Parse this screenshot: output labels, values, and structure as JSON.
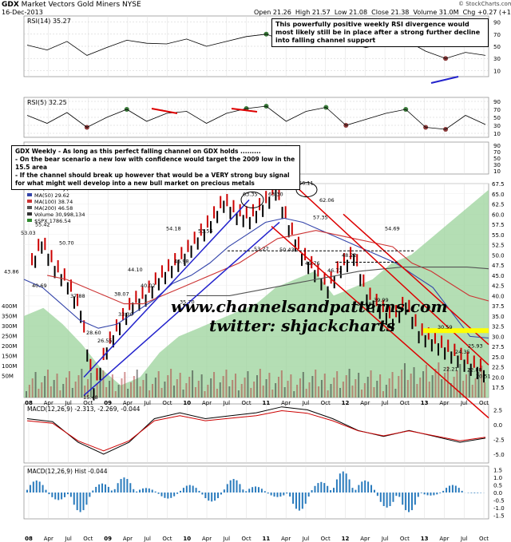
{
  "header": {
    "symbol": "GDX",
    "name": "Market Vectors Gold Miners",
    "exchange": "NYSE",
    "date": "16-Dec-2013",
    "open": "Open 21.26",
    "high": "High 21.57",
    "low": "Low 21.08",
    "close": "Close 21.38",
    "volume": "Volume 31.0M",
    "change": "Chg +0.27 (+1.28%)",
    "credit": "© StockCharts.com"
  },
  "annotations": {
    "rsi_note": "This powerfully positive weekly RSI divergence would most likely still be in place after a strong further decline into falling channel support",
    "main_note_1": "GDX Weekly - As long as this perfect falling channel on GDX holds .........",
    "main_note_2": "- On the bear scenario a new low with confidence would target the 2009 low in the 15.5 area",
    "main_note_3": "- If the channel should break up however that would be a VERY strong buy signal for what might well develop into a new bull market on precious metals",
    "website": "www.channelsandpatterns.com",
    "twitter": "twitter: shjackcharts"
  },
  "colors": {
    "price_up": "#000000",
    "price_down": "#cc0000",
    "ma50": "#3344aa",
    "ma100": "#cc3333",
    "ma200": "#555555",
    "spx_area": "#9bd39b",
    "trendline_blue": "#2222cc",
    "trendline_red": "#dd0000",
    "volume": "#3366aa",
    "hist": "#2a7bbd",
    "rsi_fill_low": "#8a3a3a",
    "rsi_fill_high": "#3a7a3a"
  },
  "chart_data": [
    {
      "type": "line",
      "panel": "rsi14",
      "label": "RSI(14) 35.27",
      "ylim": [
        0,
        100
      ],
      "ticks": [
        "90",
        "70",
        "50",
        "30",
        "10"
      ],
      "x": [
        "08",
        "Apr",
        "Jul",
        "Oct",
        "09",
        "Apr",
        "Jul",
        "Oct",
        "10",
        "Apr",
        "Jul",
        "Oct",
        "11",
        "Apr",
        "Jul",
        "Oct",
        "12",
        "Apr",
        "Jul",
        "Oct",
        "13",
        "Apr",
        "Jul",
        "Oct"
      ],
      "values": [
        52,
        44,
        58,
        35,
        48,
        60,
        55,
        54,
        62,
        50,
        58,
        66,
        70,
        58,
        62,
        70,
        55,
        48,
        55,
        60,
        42,
        30,
        40,
        35
      ]
    },
    {
      "type": "line",
      "panel": "rsi5",
      "label": "RSI(5) 32.25",
      "ylim": [
        0,
        100
      ],
      "ticks": [
        "90",
        "70",
        "50",
        "30",
        "10"
      ],
      "values": [
        55,
        35,
        62,
        25,
        50,
        70,
        40,
        60,
        65,
        35,
        60,
        72,
        78,
        40,
        65,
        75,
        30,
        45,
        60,
        70,
        25,
        20,
        55,
        32
      ]
    },
    {
      "type": "line",
      "panel": "price",
      "title": "GDX (Weekly) 21.38",
      "legend": [
        "MA(50) 29.62",
        "MA(100) 38.74",
        "MA(200) 46.58",
        "Volume 30,998,134",
        "$SPX 1786.54"
      ],
      "ylim": [
        15,
        67.5
      ],
      "yticks": [
        "67.5",
        "65.0",
        "62.5",
        "60.0",
        "57.5",
        "55.0",
        "52.5",
        "50.0",
        "47.5",
        "45.0",
        "42.5",
        "40.0",
        "37.5",
        "35.0",
        "32.5",
        "30.0",
        "27.5",
        "25.0",
        "22.5",
        "20.0",
        "17.5"
      ],
      "volume_ticks": [
        "400M",
        "350M",
        "300M",
        "250M",
        "200M",
        "150M",
        "100M",
        "50M"
      ],
      "xticks": [
        "08",
        "Apr",
        "Jul",
        "Oct",
        "09",
        "Apr",
        "Jul",
        "Oct",
        "10",
        "Apr",
        "Jul",
        "Oct",
        "11",
        "Apr",
        "Jul",
        "Oct",
        "12",
        "Apr",
        "Jul",
        "Oct",
        "13",
        "Apr",
        "Jul",
        "Oct"
      ],
      "close": [
        46,
        53,
        47,
        43,
        36,
        17,
        27,
        33,
        38,
        40,
        44,
        47,
        50,
        54,
        58,
        63,
        60,
        59,
        62,
        66,
        57,
        50,
        46,
        42,
        47,
        50,
        40,
        37,
        34,
        38,
        31,
        29,
        27,
        25,
        23,
        21.4
      ],
      "price_labels": [
        "53.03",
        "55.42",
        "50.70",
        "43.86",
        "40.69",
        "37.88",
        "26.55",
        "28.60",
        "33.30",
        "38.07",
        "44.10",
        "40.02",
        "35.70",
        "54.18",
        "53.56",
        "46.98",
        "63.35",
        "63.30",
        "53.27",
        "50.43",
        "66.11",
        "62.06",
        "57.35",
        "49.76",
        "46.72",
        "48.22",
        "38.68",
        "39.99",
        "54.69",
        "30.59",
        "24.35",
        "25.93",
        "22.21",
        "22.88",
        "20.51",
        "15.48"
      ],
      "ma50": [
        44,
        42,
        38,
        34,
        32,
        33,
        36,
        39,
        43,
        45,
        48,
        52,
        55,
        58,
        59,
        58,
        56,
        54,
        52,
        50,
        48,
        45,
        42,
        36,
        30,
        29.6
      ],
      "ma100": [
        45,
        44,
        42,
        40,
        38,
        38,
        40,
        42,
        44,
        46,
        48,
        51,
        54,
        55,
        56,
        55,
        54,
        53,
        52,
        48,
        46,
        43,
        40,
        38.7
      ],
      "ma200": [
        40,
        40,
        40,
        41,
        42,
        43,
        44,
        45,
        46,
        46.5,
        47,
        47,
        47,
        47,
        46.6
      ]
    },
    {
      "type": "line",
      "panel": "macd",
      "label": "MACD(12,26,9) -2.313, -2.269, -0.044",
      "ticks": [
        "2.5",
        "0.0",
        "-2.5",
        "-5.0"
      ],
      "values": [
        1,
        0.5,
        -3,
        -5,
        -3,
        1,
        2,
        1,
        1.5,
        2,
        3,
        2.5,
        1,
        -1,
        -2,
        -1,
        -2,
        -3,
        -2.3
      ]
    },
    {
      "type": "bar",
      "panel": "macd_hist",
      "label": "MACD(12,26,9) Hist -0.044",
      "ticks": [
        "1.5",
        "1.0",
        "0.5",
        "0.0",
        "-0.5",
        "-1.0",
        "-1.5"
      ],
      "values": [
        0.8,
        -0.5,
        -1.3,
        0.6,
        1.0,
        0.3,
        -0.4,
        0.5,
        -0.6,
        0.9,
        0.4,
        -0.3,
        -1.2,
        0.7,
        1.4,
        0.8,
        -1.0,
        -1.3,
        -0.2,
        0.5,
        -0.04
      ]
    }
  ]
}
